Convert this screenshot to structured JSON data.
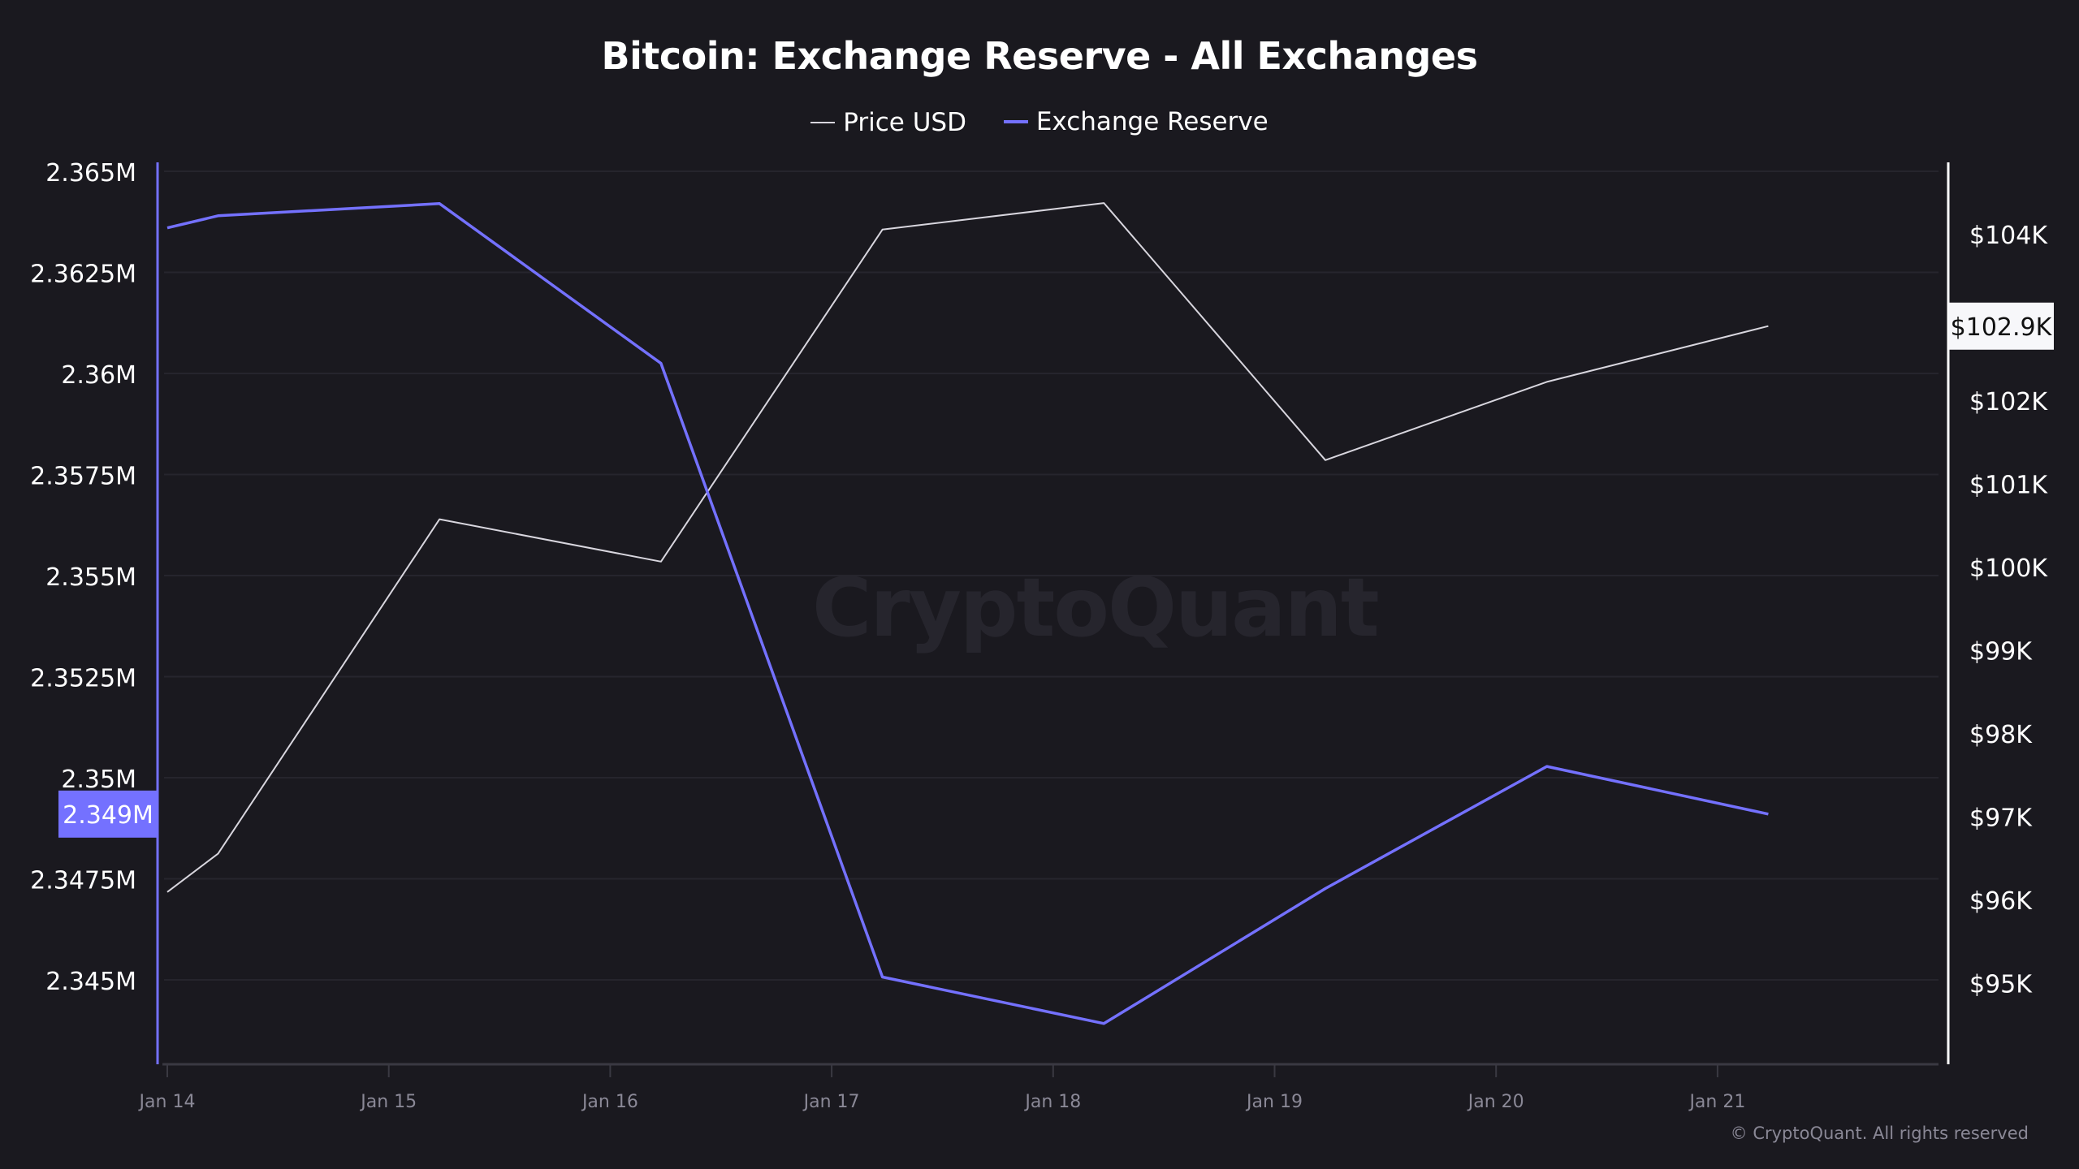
{
  "chart_data": {
    "type": "line",
    "title": "Bitcoin: Exchange Reserve - All Exchanges",
    "legend_position": "top-center",
    "grid": true,
    "x_ticks": [
      "Jan 14",
      "Jan 15",
      "Jan 16",
      "Jan 17",
      "Jan 18",
      "Jan 19",
      "Jan 20",
      "Jan 21"
    ],
    "x": [
      "Jan 14 00:00",
      "Jan 14 05:30",
      "Jan 15 05:30",
      "Jan 16 05:30",
      "Jan 17 05:30",
      "Jan 18 05:30",
      "Jan 19 05:30",
      "Jan 20 05:30",
      "Jan 21 05:30"
    ],
    "xlim": [
      "Jan 14 00:00",
      "Jan 22 00:00"
    ],
    "left_axis": {
      "ticks": [
        2.365,
        2.3625,
        2.36,
        2.3575,
        2.355,
        2.3525,
        2.35,
        2.3475,
        2.345
      ],
      "tick_labels": [
        "2.365M",
        "2.3625M",
        "2.36M",
        "2.3575M",
        "2.355M",
        "2.3525M",
        "2.35M",
        "2.3475M",
        "2.345M"
      ],
      "ylim": [
        2.3428,
        2.3653
      ],
      "unit": "M",
      "current_label": "2.349M",
      "current_value": 2.3491
    },
    "right_axis": {
      "ticks": [
        104,
        102,
        101,
        100,
        99,
        98,
        97,
        96,
        95
      ],
      "tick_labels": [
        "$104K",
        "$102K",
        "$101K",
        "$100K",
        "$99K",
        "$98K",
        "$97K",
        "$96K",
        "$95K"
      ],
      "ylim": [
        94.1,
        104.8
      ],
      "unit": "$K",
      "current_label": "$102.9K",
      "current_value": 102.9
    },
    "series": [
      {
        "name": "Price USD",
        "axis": "right",
        "color": "#d8d6de",
        "values": [
          96.1,
          96.56,
          100.58,
          100.07,
          104.06,
          104.38,
          101.29,
          102.23,
          102.9
        ]
      },
      {
        "name": "Exchange Reserve",
        "axis": "left",
        "color": "#7471ff",
        "values": [
          2.3636,
          2.3639,
          2.3642,
          2.36025,
          2.34507,
          2.34392,
          2.34726,
          2.35028,
          2.3491
        ]
      }
    ]
  },
  "watermark": "CryptoQuant",
  "copyright": "© CryptoQuant. All rights reserved"
}
